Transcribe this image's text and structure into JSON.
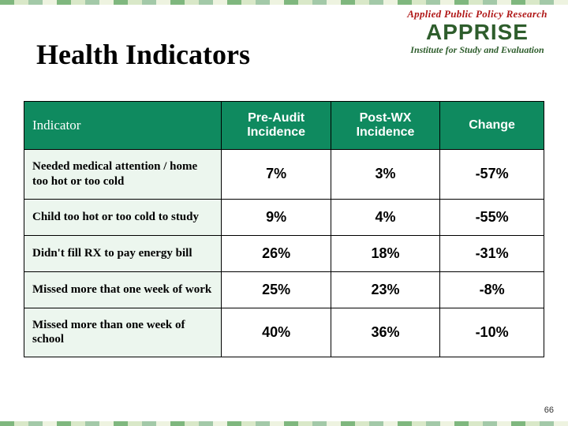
{
  "title": "Health Indicators",
  "logo": {
    "arc": "Applied Public Policy Research",
    "main": "APPRISE",
    "sub": "Institute for Study and Evaluation"
  },
  "page_number": "66",
  "table": {
    "columns": [
      "Indicator",
      "Pre-Audit Incidence",
      "Post-WX Incidence",
      "Change"
    ],
    "column_widths_pct": [
      38,
      21,
      21,
      20
    ],
    "header_bg": "#0f8a5f",
    "header_fg": "#ffffff",
    "indicator_col_bg": "#ecf6ee",
    "border_color": "#000000",
    "rows": [
      {
        "indicator": "Needed medical attention / home too hot or too cold",
        "pre": "7%",
        "post": "3%",
        "change": "-57%"
      },
      {
        "indicator": "Child too hot or too cold to study",
        "pre": "9%",
        "post": "4%",
        "change": "-55%"
      },
      {
        "indicator": "Didn't fill RX to pay energy bill",
        "pre": "26%",
        "post": "18%",
        "change": "-31%"
      },
      {
        "indicator": "Missed more that one week of work",
        "pre": "25%",
        "post": "23%",
        "change": "-8%"
      },
      {
        "indicator": "Missed more than one week of school",
        "pre": "40%",
        "post": "36%",
        "change": "-10%"
      }
    ]
  },
  "styling": {
    "title_fontsize_pt": 27,
    "header_fontsize_pt": 12,
    "cell_value_fontsize_pt": 14,
    "indicator_fontsize_pt": 11,
    "page_bg": "#ffffff",
    "stripe_colors": [
      "#7fb77e",
      "#d9e8c8",
      "#a3c9a8",
      "#eef3e0"
    ]
  }
}
